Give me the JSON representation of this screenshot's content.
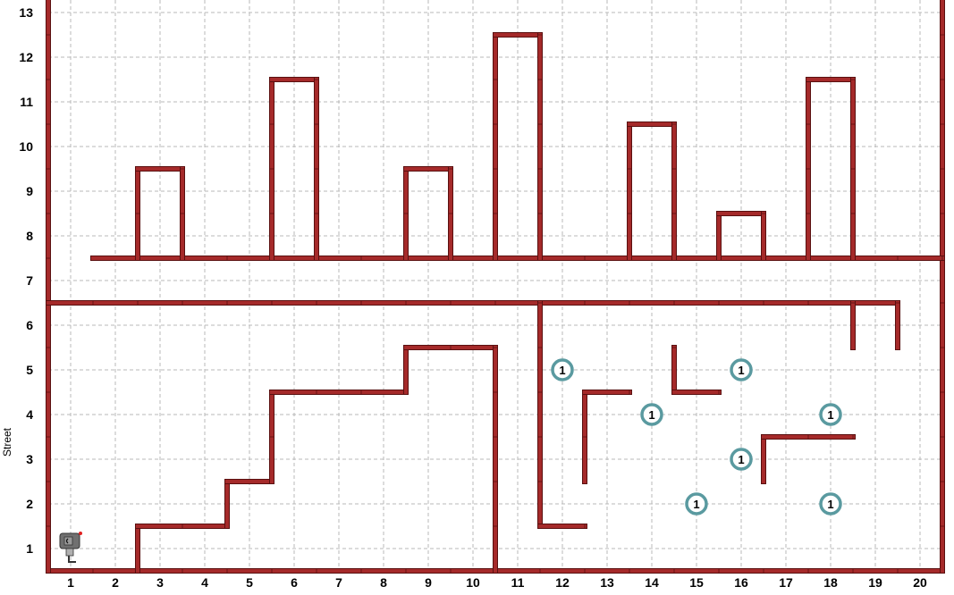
{
  "world": {
    "avenues": 20,
    "streets": 13,
    "avenue_labels": [
      "1",
      "2",
      "3",
      "4",
      "5",
      "6",
      "7",
      "8",
      "9",
      "10",
      "11",
      "12",
      "13",
      "14",
      "15",
      "16",
      "17",
      "18",
      "19",
      "20"
    ],
    "street_labels": [
      "1",
      "2",
      "3",
      "4",
      "5",
      "6",
      "7",
      "8",
      "9",
      "10",
      "11",
      "12",
      "13"
    ],
    "street_axis_label": "Street",
    "colors": {
      "wall": "#a52a2a",
      "wall_outline": "#5a1010",
      "grid": "#b8b8b8",
      "beeper_ring": "#5a9aa0",
      "robot": "#707070",
      "background": "#ffffff"
    },
    "walls": [
      {
        "dir": "h",
        "at": 0.5,
        "from": 0.5,
        "to": 20.5
      },
      {
        "dir": "v",
        "at": 0.5,
        "from": 0.5,
        "to": 13.8
      },
      {
        "dir": "v",
        "at": 20.5,
        "from": 0.5,
        "to": 13.8
      },
      {
        "dir": "h",
        "at": 6.5,
        "from": 0.5,
        "to": 19.5
      },
      {
        "dir": "h",
        "at": 7.5,
        "from": 1.5,
        "to": 20.5
      },
      {
        "dir": "v",
        "at": 2.5,
        "from": 7.5,
        "to": 9.5
      },
      {
        "dir": "h",
        "at": 9.5,
        "from": 2.5,
        "to": 3.5
      },
      {
        "dir": "v",
        "at": 3.5,
        "from": 7.5,
        "to": 9.5
      },
      {
        "dir": "v",
        "at": 5.5,
        "from": 7.5,
        "to": 11.5
      },
      {
        "dir": "h",
        "at": 11.5,
        "from": 5.5,
        "to": 6.5
      },
      {
        "dir": "v",
        "at": 6.5,
        "from": 7.5,
        "to": 11.5
      },
      {
        "dir": "v",
        "at": 8.5,
        "from": 7.5,
        "to": 9.5
      },
      {
        "dir": "h",
        "at": 9.5,
        "from": 8.5,
        "to": 9.5
      },
      {
        "dir": "v",
        "at": 9.5,
        "from": 7.5,
        "to": 9.5
      },
      {
        "dir": "v",
        "at": 10.5,
        "from": 7.5,
        "to": 12.5
      },
      {
        "dir": "h",
        "at": 12.5,
        "from": 10.5,
        "to": 11.5
      },
      {
        "dir": "v",
        "at": 11.5,
        "from": 7.5,
        "to": 12.5
      },
      {
        "dir": "v",
        "at": 13.5,
        "from": 7.5,
        "to": 10.5
      },
      {
        "dir": "h",
        "at": 10.5,
        "from": 13.5,
        "to": 14.5
      },
      {
        "dir": "v",
        "at": 14.5,
        "from": 7.5,
        "to": 10.5
      },
      {
        "dir": "v",
        "at": 15.5,
        "from": 7.5,
        "to": 8.5
      },
      {
        "dir": "h",
        "at": 8.5,
        "from": 15.5,
        "to": 16.5
      },
      {
        "dir": "v",
        "at": 16.5,
        "from": 7.5,
        "to": 8.5
      },
      {
        "dir": "v",
        "at": 17.5,
        "from": 7.5,
        "to": 11.5
      },
      {
        "dir": "h",
        "at": 11.5,
        "from": 17.5,
        "to": 18.5
      },
      {
        "dir": "v",
        "at": 18.5,
        "from": 7.5,
        "to": 11.5
      },
      {
        "dir": "v",
        "at": 2.5,
        "from": 0.5,
        "to": 1.5
      },
      {
        "dir": "h",
        "at": 1.5,
        "from": 2.5,
        "to": 4.5
      },
      {
        "dir": "v",
        "at": 4.5,
        "from": 1.5,
        "to": 2.5
      },
      {
        "dir": "h",
        "at": 2.5,
        "from": 4.5,
        "to": 5.5
      },
      {
        "dir": "v",
        "at": 5.5,
        "from": 2.5,
        "to": 4.5
      },
      {
        "dir": "h",
        "at": 4.5,
        "from": 5.5,
        "to": 8.5
      },
      {
        "dir": "v",
        "at": 8.5,
        "from": 4.5,
        "to": 5.5
      },
      {
        "dir": "h",
        "at": 5.5,
        "from": 8.5,
        "to": 10.5
      },
      {
        "dir": "v",
        "at": 10.5,
        "from": 0.5,
        "to": 5.5
      },
      {
        "dir": "v",
        "at": 11.5,
        "from": 1.5,
        "to": 6.5
      },
      {
        "dir": "h",
        "at": 1.5,
        "from": 11.5,
        "to": 12.5
      },
      {
        "dir": "v",
        "at": 12.5,
        "from": 2.5,
        "to": 4.5
      },
      {
        "dir": "h",
        "at": 4.5,
        "from": 12.5,
        "to": 13.5
      },
      {
        "dir": "v",
        "at": 14.5,
        "from": 4.5,
        "to": 5.5
      },
      {
        "dir": "h",
        "at": 4.5,
        "from": 14.5,
        "to": 15.5
      },
      {
        "dir": "v",
        "at": 16.5,
        "from": 2.5,
        "to": 3.5
      },
      {
        "dir": "h",
        "at": 3.5,
        "from": 16.5,
        "to": 18.5
      },
      {
        "dir": "v",
        "at": 18.5,
        "from": 5.5,
        "to": 6.5
      },
      {
        "dir": "v",
        "at": 19.5,
        "from": 5.5,
        "to": 6.5
      }
    ],
    "beepers": [
      {
        "avenue": 12,
        "street": 5,
        "count": "1"
      },
      {
        "avenue": 16,
        "street": 5,
        "count": "1"
      },
      {
        "avenue": 14,
        "street": 4,
        "count": "1"
      },
      {
        "avenue": 18,
        "street": 4,
        "count": "1"
      },
      {
        "avenue": 16,
        "street": 3,
        "count": "1"
      },
      {
        "avenue": 15,
        "street": 2,
        "count": "1"
      },
      {
        "avenue": 18,
        "street": 2,
        "count": "1"
      }
    ],
    "robot": {
      "avenue": 1,
      "street": 1,
      "facing": "east"
    }
  }
}
